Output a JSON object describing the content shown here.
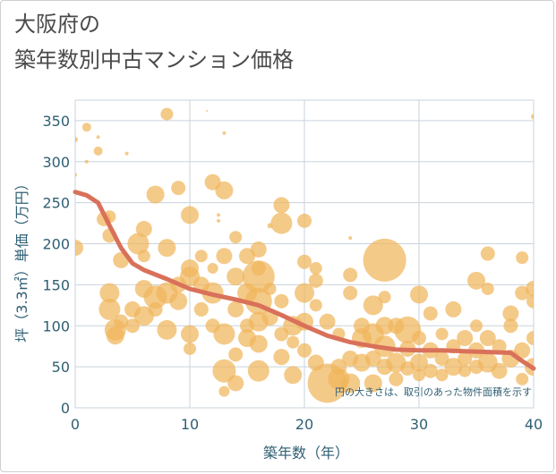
{
  "chart_data": {
    "type": "scatter",
    "title_lines": [
      "大阪府の",
      "築年数別中古マンション価格"
    ],
    "xlabel": "築年数（年）",
    "ylabel": "坪（3.3㎡）単価（万円）",
    "note": "円の大きさは、取引のあった物件面積を示す",
    "xlim": [
      0,
      40
    ],
    "ylim": [
      0,
      375
    ],
    "x_ticks": [
      0,
      10,
      20,
      30,
      40
    ],
    "y_ticks": [
      0,
      50,
      100,
      150,
      200,
      250,
      300,
      350
    ],
    "grid": true,
    "colors": {
      "bubble": "#f0b55c",
      "trend": "#d9715a",
      "grid": "#c9d3dc",
      "axis": "#2f5f73"
    },
    "trend_line": {
      "x": [
        0,
        1,
        2,
        3,
        4,
        5,
        6,
        8,
        10,
        12,
        14,
        16,
        18,
        20,
        22,
        24,
        26,
        28,
        30,
        32,
        34,
        36,
        38,
        39,
        40
      ],
      "y": [
        263,
        259,
        250,
        222,
        195,
        176,
        168,
        157,
        145,
        138,
        132,
        125,
        113,
        100,
        88,
        80,
        75,
        71,
        70,
        70,
        69,
        68,
        67,
        57,
        48
      ]
    },
    "points": [
      {
        "x": 0,
        "y": 195,
        "s": 9
      },
      {
        "x": 0,
        "y": 327,
        "s": 3
      },
      {
        "x": 0,
        "y": 284,
        "s": 2
      },
      {
        "x": 1,
        "y": 342,
        "s": 5
      },
      {
        "x": 1,
        "y": 300,
        "s": 2
      },
      {
        "x": 2,
        "y": 313,
        "s": 5
      },
      {
        "x": 2,
        "y": 330,
        "s": 2
      },
      {
        "x": 2.5,
        "y": 230,
        "s": 8
      },
      {
        "x": 3,
        "y": 233,
        "s": 7
      },
      {
        "x": 3,
        "y": 210,
        "s": 8
      },
      {
        "x": 3,
        "y": 140,
        "s": 11
      },
      {
        "x": 3,
        "y": 120,
        "s": 12
      },
      {
        "x": 3.5,
        "y": 95,
        "s": 12
      },
      {
        "x": 3.5,
        "y": 88,
        "s": 10
      },
      {
        "x": 4,
        "y": 180,
        "s": 9
      },
      {
        "x": 4,
        "y": 105,
        "s": 8
      },
      {
        "x": 4.5,
        "y": 310,
        "s": 2
      },
      {
        "x": 5,
        "y": 120,
        "s": 9
      },
      {
        "x": 5,
        "y": 100,
        "s": 8
      },
      {
        "x": 5.5,
        "y": 200,
        "s": 12
      },
      {
        "x": 6,
        "y": 218,
        "s": 9
      },
      {
        "x": 6,
        "y": 185,
        "s": 7
      },
      {
        "x": 6,
        "y": 145,
        "s": 10
      },
      {
        "x": 6,
        "y": 112,
        "s": 11
      },
      {
        "x": 7,
        "y": 260,
        "s": 10
      },
      {
        "x": 7,
        "y": 135,
        "s": 13
      },
      {
        "x": 7,
        "y": 120,
        "s": 8
      },
      {
        "x": 8,
        "y": 358,
        "s": 7
      },
      {
        "x": 8,
        "y": 195,
        "s": 10
      },
      {
        "x": 8,
        "y": 140,
        "s": 12
      },
      {
        "x": 8,
        "y": 95,
        "s": 11
      },
      {
        "x": 9,
        "y": 268,
        "s": 8
      },
      {
        "x": 9,
        "y": 150,
        "s": 9
      },
      {
        "x": 9,
        "y": 130,
        "s": 10
      },
      {
        "x": 10,
        "y": 235,
        "s": 10
      },
      {
        "x": 10,
        "y": 170,
        "s": 10
      },
      {
        "x": 10,
        "y": 160,
        "s": 11
      },
      {
        "x": 10,
        "y": 90,
        "s": 10
      },
      {
        "x": 10,
        "y": 72,
        "s": 7
      },
      {
        "x": 11,
        "y": 185,
        "s": 7
      },
      {
        "x": 11,
        "y": 150,
        "s": 9
      },
      {
        "x": 11,
        "y": 120,
        "s": 8
      },
      {
        "x": 11.5,
        "y": 362,
        "s": 1
      },
      {
        "x": 12,
        "y": 275,
        "s": 9
      },
      {
        "x": 12,
        "y": 170,
        "s": 6
      },
      {
        "x": 12,
        "y": 140,
        "s": 12
      },
      {
        "x": 12,
        "y": 100,
        "s": 8
      },
      {
        "x": 12.5,
        "y": 235,
        "s": 2
      },
      {
        "x": 12.5,
        "y": 228,
        "s": 2
      },
      {
        "x": 13,
        "y": 265,
        "s": 10
      },
      {
        "x": 13,
        "y": 185,
        "s": 9
      },
      {
        "x": 13,
        "y": 90,
        "s": 12
      },
      {
        "x": 13,
        "y": 45,
        "s": 13
      },
      {
        "x": 13,
        "y": 20,
        "s": 6
      },
      {
        "x": 13,
        "y": 335,
        "s": 2
      },
      {
        "x": 14,
        "y": 208,
        "s": 7
      },
      {
        "x": 14,
        "y": 160,
        "s": 10
      },
      {
        "x": 14,
        "y": 120,
        "s": 9
      },
      {
        "x": 14,
        "y": 65,
        "s": 8
      },
      {
        "x": 14,
        "y": 30,
        "s": 9
      },
      {
        "x": 15,
        "y": 185,
        "s": 9
      },
      {
        "x": 15,
        "y": 140,
        "s": 11
      },
      {
        "x": 15,
        "y": 100,
        "s": 8
      },
      {
        "x": 15,
        "y": 85,
        "s": 10
      },
      {
        "x": 16,
        "y": 193,
        "s": 9
      },
      {
        "x": 16,
        "y": 170,
        "s": 8
      },
      {
        "x": 16,
        "y": 160,
        "s": 18
      },
      {
        "x": 16,
        "y": 130,
        "s": 15
      },
      {
        "x": 16,
        "y": 105,
        "s": 11
      },
      {
        "x": 16,
        "y": 78,
        "s": 10
      },
      {
        "x": 16,
        "y": 45,
        "s": 12
      },
      {
        "x": 17,
        "y": 145,
        "s": 7
      },
      {
        "x": 17,
        "y": 110,
        "s": 9
      },
      {
        "x": 17,
        "y": 222,
        "s": 3
      },
      {
        "x": 18,
        "y": 247,
        "s": 9
      },
      {
        "x": 18,
        "y": 225,
        "s": 12
      },
      {
        "x": 18,
        "y": 130,
        "s": 8
      },
      {
        "x": 18,
        "y": 90,
        "s": 8
      },
      {
        "x": 18,
        "y": 62,
        "s": 9
      },
      {
        "x": 19,
        "y": 100,
        "s": 11
      },
      {
        "x": 19,
        "y": 80,
        "s": 7
      },
      {
        "x": 19,
        "y": 40,
        "s": 10
      },
      {
        "x": 20,
        "y": 228,
        "s": 8
      },
      {
        "x": 20,
        "y": 178,
        "s": 8
      },
      {
        "x": 20,
        "y": 140,
        "s": 11
      },
      {
        "x": 20,
        "y": 105,
        "s": 10
      },
      {
        "x": 20,
        "y": 70,
        "s": 8
      },
      {
        "x": 21,
        "y": 170,
        "s": 7
      },
      {
        "x": 21,
        "y": 155,
        "s": 8
      },
      {
        "x": 21,
        "y": 125,
        "s": 7
      },
      {
        "x": 21,
        "y": 55,
        "s": 9
      },
      {
        "x": 22,
        "y": 30,
        "s": 22
      },
      {
        "x": 22,
        "y": 105,
        "s": 9
      },
      {
        "x": 23,
        "y": 50,
        "s": 9
      },
      {
        "x": 23,
        "y": 35,
        "s": 12
      },
      {
        "x": 23,
        "y": 90,
        "s": 7
      },
      {
        "x": 24,
        "y": 162,
        "s": 8
      },
      {
        "x": 24,
        "y": 140,
        "s": 8
      },
      {
        "x": 24,
        "y": 60,
        "s": 9
      },
      {
        "x": 24,
        "y": 30,
        "s": 11
      },
      {
        "x": 24,
        "y": 207,
        "s": 2
      },
      {
        "x": 25,
        "y": 100,
        "s": 9
      },
      {
        "x": 25,
        "y": 85,
        "s": 11
      },
      {
        "x": 25,
        "y": 55,
        "s": 10
      },
      {
        "x": 26,
        "y": 125,
        "s": 11
      },
      {
        "x": 26,
        "y": 90,
        "s": 12
      },
      {
        "x": 26,
        "y": 60,
        "s": 9
      },
      {
        "x": 26,
        "y": 30,
        "s": 10
      },
      {
        "x": 27,
        "y": 180,
        "s": 24
      },
      {
        "x": 27,
        "y": 135,
        "s": 7
      },
      {
        "x": 27,
        "y": 100,
        "s": 10
      },
      {
        "x": 27,
        "y": 75,
        "s": 12
      },
      {
        "x": 27,
        "y": 50,
        "s": 9
      },
      {
        "x": 28,
        "y": 100,
        "s": 9
      },
      {
        "x": 28,
        "y": 55,
        "s": 11
      },
      {
        "x": 28,
        "y": 35,
        "s": 8
      },
      {
        "x": 29,
        "y": 95,
        "s": 15
      },
      {
        "x": 29,
        "y": 72,
        "s": 9
      },
      {
        "x": 29,
        "y": 48,
        "s": 8
      },
      {
        "x": 30,
        "y": 138,
        "s": 10
      },
      {
        "x": 30,
        "y": 85,
        "s": 8
      },
      {
        "x": 30,
        "y": 55,
        "s": 10
      },
      {
        "x": 30,
        "y": 40,
        "s": 7
      },
      {
        "x": 31,
        "y": 115,
        "s": 8
      },
      {
        "x": 31,
        "y": 70,
        "s": 9
      },
      {
        "x": 31,
        "y": 45,
        "s": 8
      },
      {
        "x": 32,
        "y": 90,
        "s": 7
      },
      {
        "x": 32,
        "y": 60,
        "s": 8
      },
      {
        "x": 32,
        "y": 40,
        "s": 7
      },
      {
        "x": 33,
        "y": 120,
        "s": 9
      },
      {
        "x": 33,
        "y": 75,
        "s": 8
      },
      {
        "x": 33,
        "y": 50,
        "s": 10
      },
      {
        "x": 34,
        "y": 85,
        "s": 9
      },
      {
        "x": 34,
        "y": 60,
        "s": 8
      },
      {
        "x": 34,
        "y": 45,
        "s": 7
      },
      {
        "x": 35,
        "y": 155,
        "s": 10
      },
      {
        "x": 35,
        "y": 100,
        "s": 7
      },
      {
        "x": 35,
        "y": 70,
        "s": 9
      },
      {
        "x": 35,
        "y": 50,
        "s": 8
      },
      {
        "x": 36,
        "y": 188,
        "s": 8
      },
      {
        "x": 36,
        "y": 145,
        "s": 7
      },
      {
        "x": 36,
        "y": 85,
        "s": 9
      },
      {
        "x": 36,
        "y": 55,
        "s": 11
      },
      {
        "x": 37,
        "y": 75,
        "s": 8
      },
      {
        "x": 37,
        "y": 45,
        "s": 9
      },
      {
        "x": 38,
        "y": 115,
        "s": 9
      },
      {
        "x": 38,
        "y": 100,
        "s": 8
      },
      {
        "x": 38,
        "y": 60,
        "s": 10
      },
      {
        "x": 39,
        "y": 183,
        "s": 7
      },
      {
        "x": 39,
        "y": 140,
        "s": 8
      },
      {
        "x": 39,
        "y": 70,
        "s": 9
      },
      {
        "x": 39,
        "y": 35,
        "s": 7
      },
      {
        "x": 40,
        "y": 355,
        "s": 3
      },
      {
        "x": 40,
        "y": 145,
        "s": 9
      },
      {
        "x": 40,
        "y": 130,
        "s": 8
      },
      {
        "x": 40,
        "y": 85,
        "s": 8
      },
      {
        "x": 40,
        "y": 50,
        "s": 10
      }
    ]
  }
}
